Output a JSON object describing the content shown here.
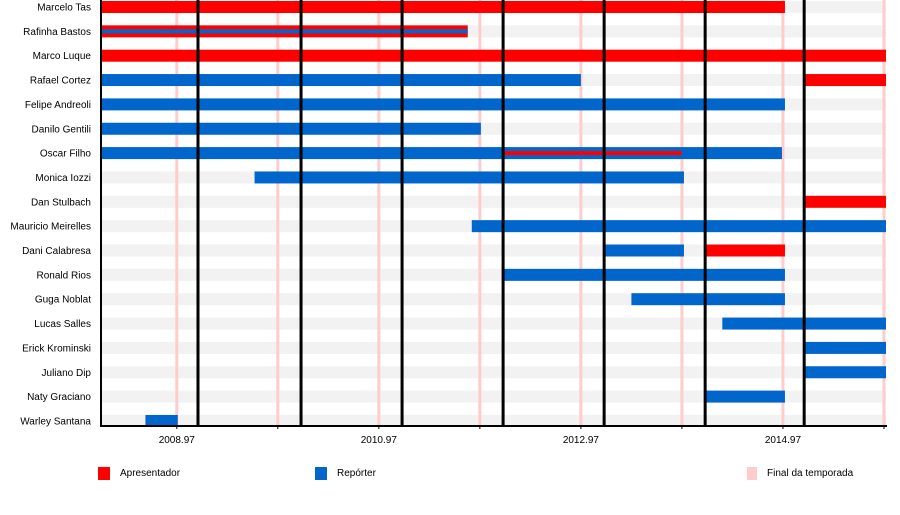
{
  "chart_data": {
    "type": "timeline",
    "xlim": [
      2008.22,
      2015.99
    ],
    "x_ticks": [
      "2008.97",
      "2010.97",
      "2012.97",
      "2014.97"
    ],
    "x_tick_values": [
      2008.97,
      2010.97,
      2012.97,
      2014.97
    ],
    "season_starts": [
      2009.18,
      2010.2,
      2011.2,
      2012.2,
      2013.2,
      2014.2,
      2015.18
    ],
    "season_ends": [
      2008.97,
      2009.97,
      2010.97,
      2011.97,
      2012.97,
      2013.97,
      2014.97,
      2015.97
    ],
    "colors": {
      "Apresentador": "#ff0000",
      "Repórter": "#0066cc",
      "Final da temporada": "#ffcccc",
      "season_start": "#000000",
      "row_band": "#f2f2f2"
    },
    "legend": [
      {
        "label": "Apresentador",
        "color": "#ff0000"
      },
      {
        "label": "Repórter",
        "color": "#0066cc"
      },
      {
        "label": "Final da temporada",
        "color": "#ffcccc"
      }
    ],
    "rows": [
      {
        "name": "Marcelo Tas",
        "bars": [
          {
            "role": "Apresentador",
            "start": 2008.22,
            "end": 2014.99
          }
        ]
      },
      {
        "name": "Rafinha Bastos",
        "bars": [
          {
            "role": "Apresentador",
            "start": 2008.22,
            "end": 2011.85
          },
          {
            "role": "Repórter",
            "start": 2008.22,
            "end": 2011.85,
            "stripe": true
          }
        ]
      },
      {
        "name": "Marco Luque",
        "bars": [
          {
            "role": "Apresentador",
            "start": 2008.22,
            "end": 2015.99
          }
        ]
      },
      {
        "name": "Rafael Cortez",
        "bars": [
          {
            "role": "Repórter",
            "start": 2008.22,
            "end": 2012.97
          },
          {
            "role": "Apresentador",
            "start": 2015.18,
            "end": 2015.99
          }
        ]
      },
      {
        "name": "Felipe Andreoli",
        "bars": [
          {
            "role": "Repórter",
            "start": 2008.22,
            "end": 2014.99
          }
        ]
      },
      {
        "name": "Danilo Gentili",
        "bars": [
          {
            "role": "Repórter",
            "start": 2008.22,
            "end": 2011.98
          }
        ]
      },
      {
        "name": "Oscar Filho",
        "bars": [
          {
            "role": "Repórter",
            "start": 2008.22,
            "end": 2014.96
          },
          {
            "role": "Apresentador",
            "start": 2012.2,
            "end": 2013.97,
            "stripe": true
          }
        ]
      },
      {
        "name": "Monica Iozzi",
        "bars": [
          {
            "role": "Repórter",
            "start": 2009.74,
            "end": 2013.99
          }
        ]
      },
      {
        "name": "Dan Stulbach",
        "bars": [
          {
            "role": "Apresentador",
            "start": 2015.18,
            "end": 2015.99
          }
        ]
      },
      {
        "name": "Mauricio Meirelles",
        "bars": [
          {
            "role": "Repórter",
            "start": 2011.89,
            "end": 2015.99
          }
        ]
      },
      {
        "name": "Dani Calabresa",
        "bars": [
          {
            "role": "Repórter",
            "start": 2013.2,
            "end": 2013.99
          },
          {
            "role": "Apresentador",
            "start": 2014.2,
            "end": 2014.99
          }
        ]
      },
      {
        "name": "Ronald Rios",
        "bars": [
          {
            "role": "Repórter",
            "start": 2012.2,
            "end": 2014.99
          }
        ]
      },
      {
        "name": "Guga Noblat",
        "bars": [
          {
            "role": "Repórter",
            "start": 2013.47,
            "end": 2014.99
          }
        ]
      },
      {
        "name": "Lucas Salles",
        "bars": [
          {
            "role": "Repórter",
            "start": 2014.37,
            "end": 2015.99
          }
        ]
      },
      {
        "name": "Erick Krominski",
        "bars": [
          {
            "role": "Repórter",
            "start": 2015.18,
            "end": 2015.99
          }
        ]
      },
      {
        "name": "Juliano Dip",
        "bars": [
          {
            "role": "Repórter",
            "start": 2015.18,
            "end": 2015.99
          }
        ]
      },
      {
        "name": "Naty Graciano",
        "bars": [
          {
            "role": "Repórter",
            "start": 2014.2,
            "end": 2014.99
          }
        ]
      },
      {
        "name": "Warley Santana",
        "bars": [
          {
            "role": "Repórter",
            "start": 2008.66,
            "end": 2008.98
          }
        ]
      }
    ]
  }
}
